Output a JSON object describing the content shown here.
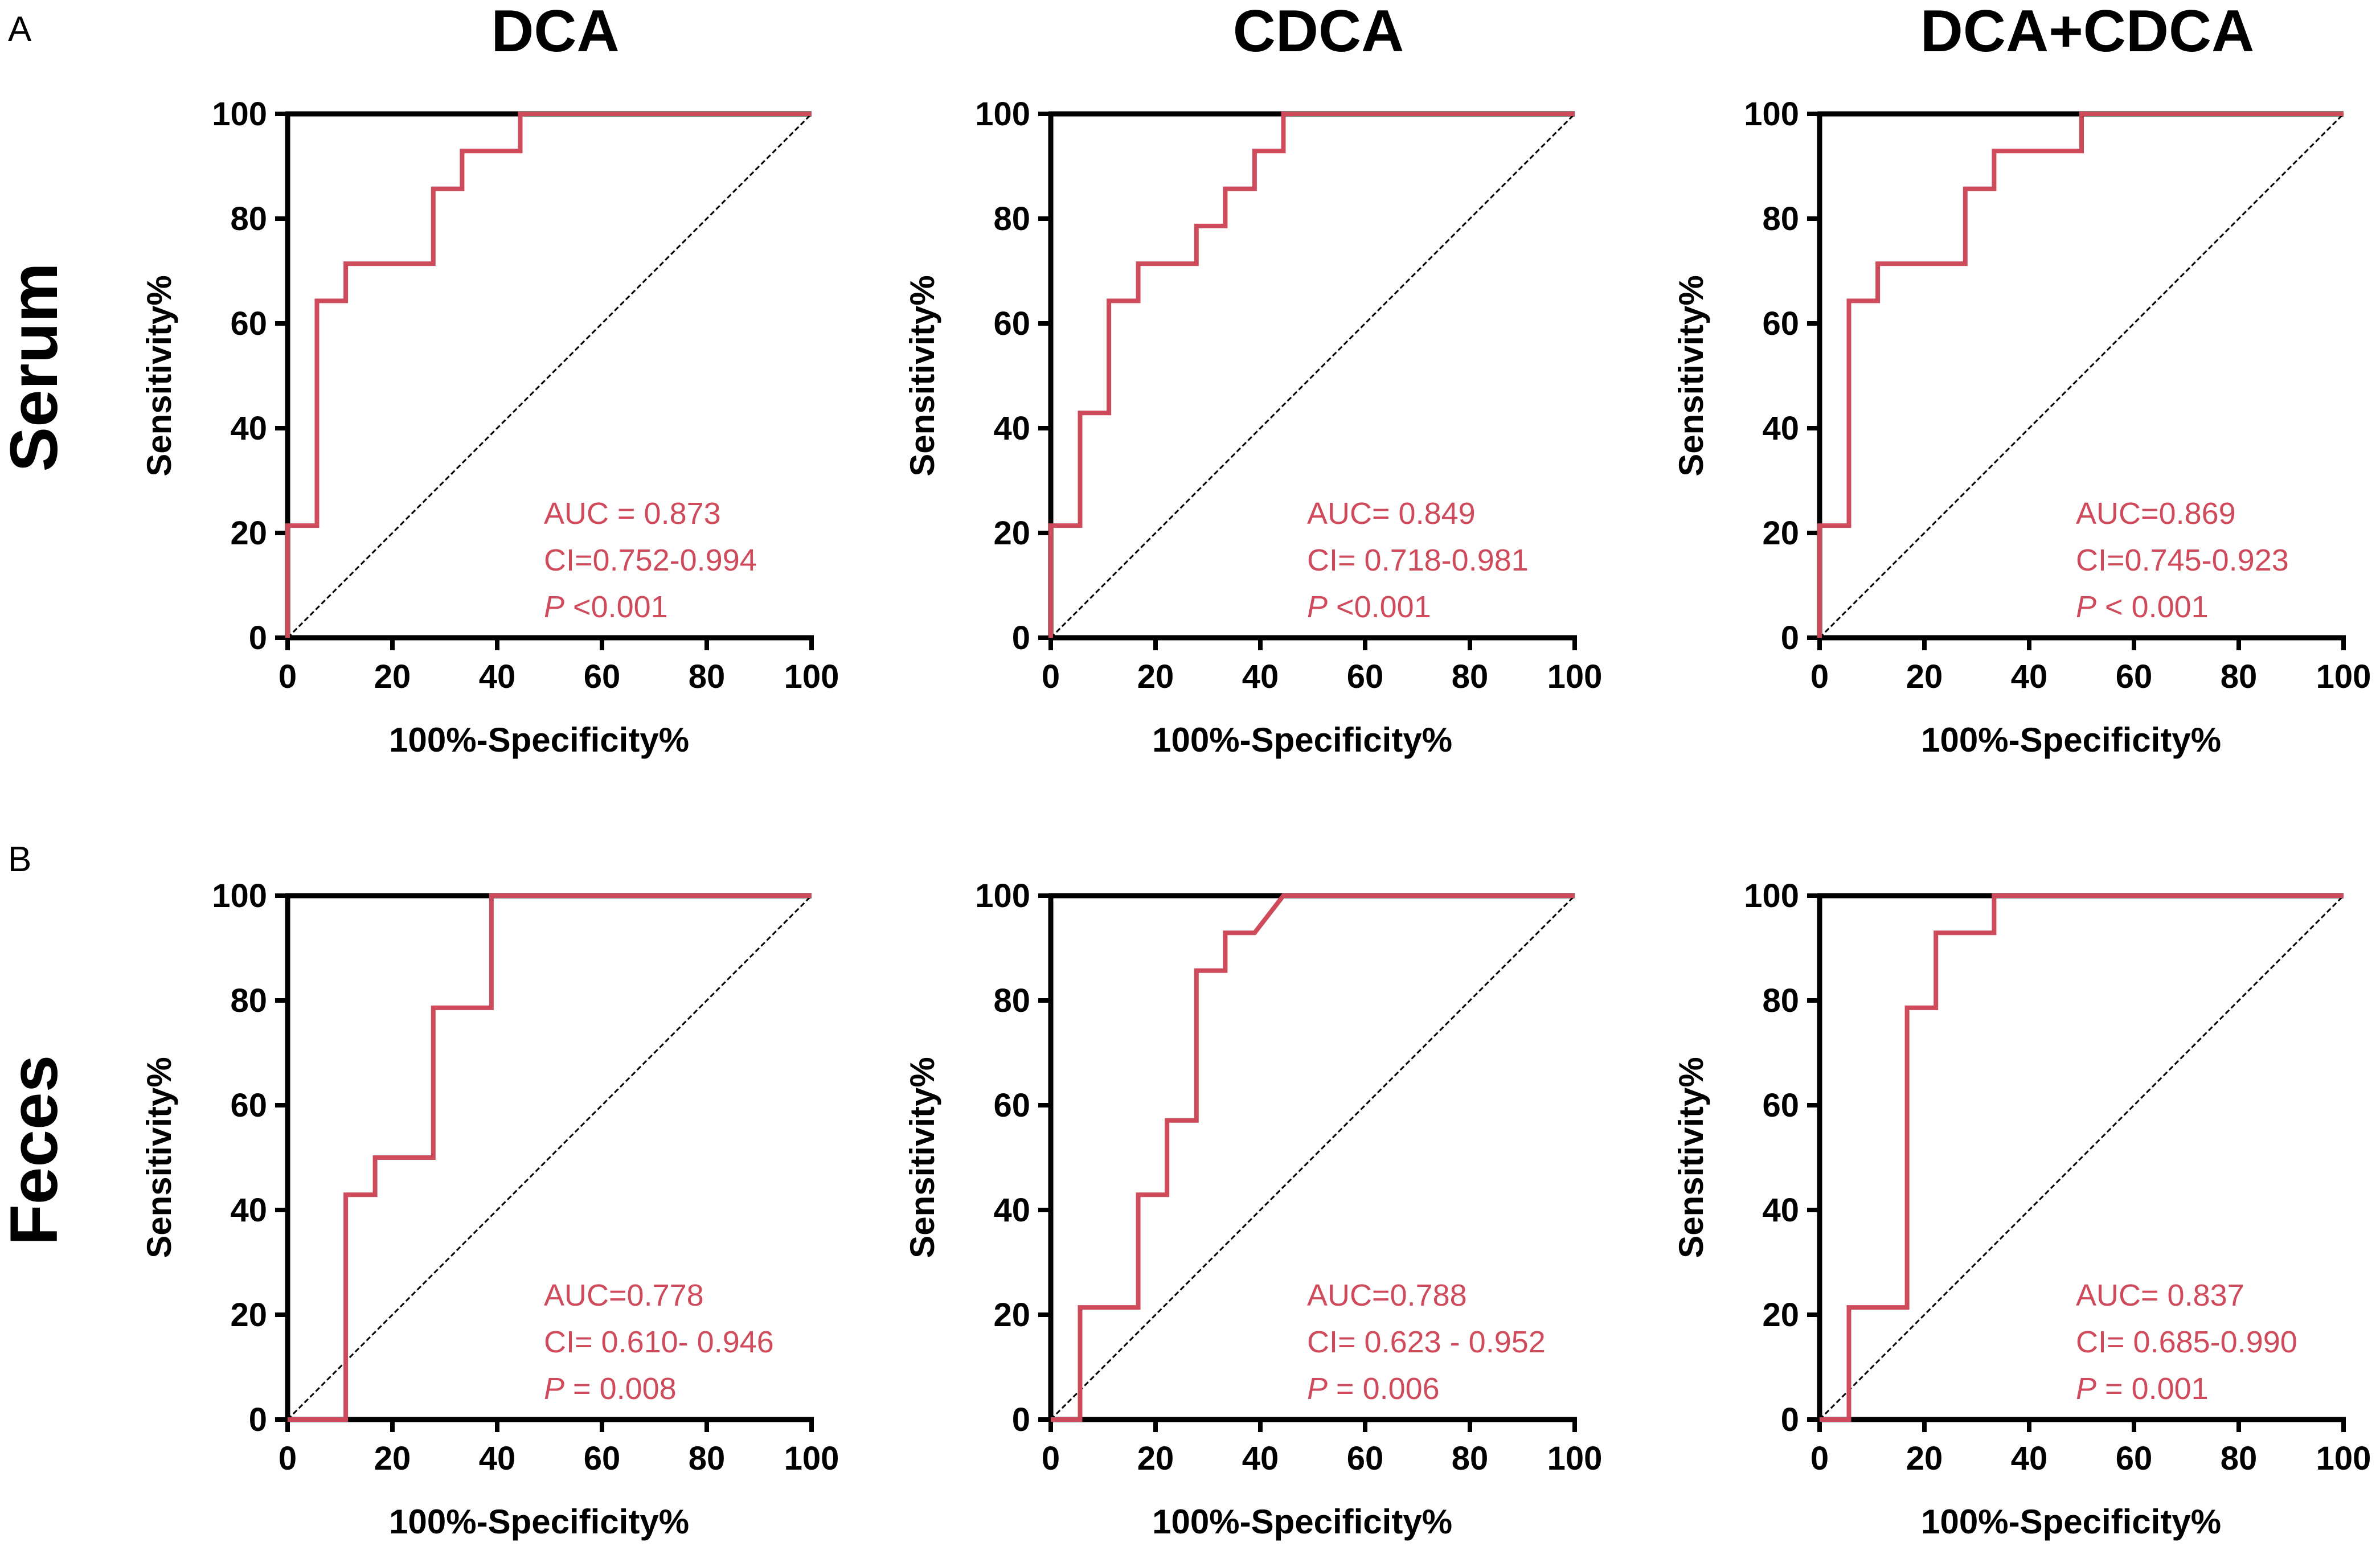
{
  "panel_labels": [
    "A",
    "B"
  ],
  "column_titles": [
    "DCA",
    "CDCA",
    "DCA+CDCA"
  ],
  "row_labels": [
    "Serum",
    "Feces"
  ],
  "colors": {
    "roc": "#cf4b5b",
    "axis": "#000000",
    "annotation": "#cf4b5b"
  },
  "chart_data": [
    {
      "id": "serum-dca",
      "type": "line",
      "row": 0,
      "col": 0,
      "xlabel": "100%-Specificity%",
      "ylabel": "Sensitivity%",
      "xlim": [
        0,
        100
      ],
      "ylim": [
        0,
        100
      ],
      "xticks": [
        0,
        20,
        40,
        60,
        80,
        100
      ],
      "yticks": [
        0,
        20,
        40,
        60,
        80,
        100
      ],
      "reference_line": [
        [
          0,
          0
        ],
        [
          100,
          100
        ]
      ],
      "roc": [
        [
          0,
          0
        ],
        [
          0,
          21.4
        ],
        [
          5.6,
          21.4
        ],
        [
          5.6,
          64.3
        ],
        [
          11.1,
          64.3
        ],
        [
          11.1,
          71.4
        ],
        [
          27.8,
          71.4
        ],
        [
          27.8,
          85.7
        ],
        [
          33.3,
          85.7
        ],
        [
          33.3,
          92.9
        ],
        [
          44.4,
          92.9
        ],
        [
          44.4,
          100
        ],
        [
          100,
          100
        ]
      ],
      "auc": "AUC = 0.873",
      "ci": "CI=0.752-0.994",
      "p_prefix": "P",
      "p_value": " <0.001"
    },
    {
      "id": "serum-cdca",
      "type": "line",
      "row": 0,
      "col": 1,
      "xlabel": "100%-Specificity%",
      "ylabel": "Sensitivity%",
      "xlim": [
        0,
        100
      ],
      "ylim": [
        0,
        100
      ],
      "xticks": [
        0,
        20,
        40,
        60,
        80,
        100
      ],
      "yticks": [
        0,
        20,
        40,
        60,
        80,
        100
      ],
      "reference_line": [
        [
          0,
          0
        ],
        [
          100,
          100
        ]
      ],
      "roc": [
        [
          0,
          0
        ],
        [
          0,
          21.4
        ],
        [
          5.6,
          21.4
        ],
        [
          5.6,
          42.9
        ],
        [
          11.1,
          42.9
        ],
        [
          11.1,
          64.3
        ],
        [
          16.7,
          64.3
        ],
        [
          16.7,
          71.4
        ],
        [
          27.8,
          71.4
        ],
        [
          27.8,
          78.6
        ],
        [
          33.3,
          78.6
        ],
        [
          33.3,
          85.7
        ],
        [
          38.9,
          85.7
        ],
        [
          38.9,
          92.9
        ],
        [
          44.4,
          92.9
        ],
        [
          44.4,
          100
        ],
        [
          100,
          100
        ]
      ],
      "auc": "AUC= 0.849",
      "ci": "CI= 0.718-0.981",
      "p_prefix": "P",
      "p_value": " <0.001"
    },
    {
      "id": "serum-dca-cdca",
      "type": "line",
      "row": 0,
      "col": 2,
      "xlabel": "100%-Specificity%",
      "ylabel": "Sensitivity%",
      "xlim": [
        0,
        100
      ],
      "ylim": [
        0,
        100
      ],
      "xticks": [
        0,
        20,
        40,
        60,
        80,
        100
      ],
      "yticks": [
        0,
        20,
        40,
        60,
        80,
        100
      ],
      "reference_line": [
        [
          0,
          0
        ],
        [
          100,
          100
        ]
      ],
      "roc": [
        [
          0,
          0
        ],
        [
          0,
          21.4
        ],
        [
          5.6,
          21.4
        ],
        [
          5.6,
          64.3
        ],
        [
          11.1,
          64.3
        ],
        [
          11.1,
          71.4
        ],
        [
          27.8,
          71.4
        ],
        [
          27.8,
          85.7
        ],
        [
          33.3,
          85.7
        ],
        [
          33.3,
          92.9
        ],
        [
          50,
          92.9
        ],
        [
          50,
          100
        ],
        [
          100,
          100
        ]
      ],
      "auc": "AUC=0.869",
      "ci": "CI=0.745-0.923",
      "p_prefix": "P",
      "p_value": " < 0.001"
    },
    {
      "id": "feces-dca",
      "type": "line",
      "row": 1,
      "col": 0,
      "xlabel": "100%-Specificity%",
      "ylabel": "Sensitivity%",
      "xlim": [
        0,
        100
      ],
      "ylim": [
        0,
        100
      ],
      "xticks": [
        0,
        20,
        40,
        60,
        80,
        100
      ],
      "yticks": [
        0,
        20,
        40,
        60,
        80,
        100
      ],
      "reference_line": [
        [
          0,
          0
        ],
        [
          100,
          100
        ]
      ],
      "roc": [
        [
          0,
          0
        ],
        [
          11.1,
          0
        ],
        [
          11.1,
          42.9
        ],
        [
          16.7,
          42.9
        ],
        [
          16.7,
          50
        ],
        [
          27.8,
          50
        ],
        [
          27.8,
          78.6
        ],
        [
          38.9,
          78.6
        ],
        [
          38.9,
          100
        ],
        [
          100,
          100
        ]
      ],
      "auc": "AUC=0.778",
      "ci": "CI= 0.610- 0.946",
      "p_prefix": "P",
      "p_value": " = 0.008"
    },
    {
      "id": "feces-cdca",
      "type": "line",
      "row": 1,
      "col": 1,
      "xlabel": "100%-Specificity%",
      "ylabel": "Sensitivity%",
      "xlim": [
        0,
        100
      ],
      "ylim": [
        0,
        100
      ],
      "xticks": [
        0,
        20,
        40,
        60,
        80,
        100
      ],
      "yticks": [
        0,
        20,
        40,
        60,
        80,
        100
      ],
      "reference_line": [
        [
          0,
          0
        ],
        [
          100,
          100
        ]
      ],
      "roc": [
        [
          0,
          0
        ],
        [
          5.6,
          0
        ],
        [
          5.6,
          21.4
        ],
        [
          16.7,
          21.4
        ],
        [
          16.7,
          42.9
        ],
        [
          22.2,
          42.9
        ],
        [
          22.2,
          57.1
        ],
        [
          27.8,
          57.1
        ],
        [
          27.8,
          85.7
        ],
        [
          33.3,
          85.7
        ],
        [
          33.3,
          92.9
        ],
        [
          38.9,
          92.9
        ],
        [
          44.4,
          100
        ],
        [
          100,
          100
        ]
      ],
      "auc": "AUC=0.788",
      "ci": "CI= 0.623 - 0.952",
      "p_prefix": "P",
      "p_value": " = 0.006"
    },
    {
      "id": "feces-dca-cdca",
      "type": "line",
      "row": 1,
      "col": 2,
      "xlabel": "100%-Specificity%",
      "ylabel": "Sensitivity%",
      "xlim": [
        0,
        100
      ],
      "ylim": [
        0,
        100
      ],
      "xticks": [
        0,
        20,
        40,
        60,
        80,
        100
      ],
      "yticks": [
        0,
        20,
        40,
        60,
        80,
        100
      ],
      "reference_line": [
        [
          0,
          0
        ],
        [
          100,
          100
        ]
      ],
      "roc": [
        [
          0,
          0
        ],
        [
          5.6,
          0
        ],
        [
          5.6,
          21.4
        ],
        [
          16.7,
          21.4
        ],
        [
          16.7,
          78.6
        ],
        [
          22.2,
          78.6
        ],
        [
          22.2,
          92.9
        ],
        [
          33.3,
          92.9
        ],
        [
          33.3,
          100
        ],
        [
          100,
          100
        ]
      ],
      "auc": "AUC= 0.837",
      "ci": "CI= 0.685-0.990",
      "p_prefix": "P",
      "p_value": " = 0.001"
    }
  ]
}
